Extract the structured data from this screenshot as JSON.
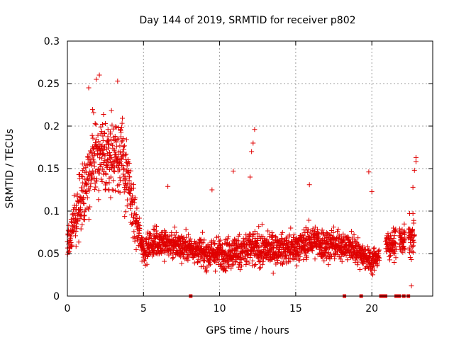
{
  "chart_data": {
    "type": "scatter",
    "title": "Day 144 of 2019, SRMTID for receiver p802",
    "xlabel": "GPS time / hours",
    "ylabel": "SRMTID / TECUs",
    "xlim": [
      0,
      24
    ],
    "ylim": [
      0,
      0.3
    ],
    "x_ticks": [
      0,
      5,
      10,
      15,
      20
    ],
    "x_tick_labels": [
      "0",
      "5",
      "10",
      "15",
      "20"
    ],
    "y_ticks": [
      0,
      0.05,
      0.1,
      0.15,
      0.2,
      0.25,
      0.3
    ],
    "y_tick_labels": [
      "0",
      "0.05",
      "0.1",
      "0.15",
      "0.2",
      "0.25",
      "0.3"
    ],
    "grid": true,
    "marker": "+",
    "color": "#e00000",
    "series": [
      {
        "name": "SRMTID",
        "envelope": [
          {
            "x": 0.0,
            "y_mean": 0.055,
            "y_spread": 0.025
          },
          {
            "x": 0.5,
            "y_mean": 0.09,
            "y_spread": 0.035
          },
          {
            "x": 1.0,
            "y_mean": 0.12,
            "y_spread": 0.05
          },
          {
            "x": 1.5,
            "y_mean": 0.15,
            "y_spread": 0.06
          },
          {
            "x": 2.0,
            "y_mean": 0.16,
            "y_spread": 0.065
          },
          {
            "x": 2.5,
            "y_mean": 0.165,
            "y_spread": 0.06
          },
          {
            "x": 3.0,
            "y_mean": 0.165,
            "y_spread": 0.055
          },
          {
            "x": 3.5,
            "y_mean": 0.17,
            "y_spread": 0.055
          },
          {
            "x": 4.0,
            "y_mean": 0.13,
            "y_spread": 0.06
          },
          {
            "x": 4.5,
            "y_mean": 0.085,
            "y_spread": 0.035
          },
          {
            "x": 5.0,
            "y_mean": 0.055,
            "y_spread": 0.02
          },
          {
            "x": 6.0,
            "y_mean": 0.065,
            "y_spread": 0.025
          },
          {
            "x": 7.0,
            "y_mean": 0.06,
            "y_spread": 0.022
          },
          {
            "x": 8.0,
            "y_mean": 0.058,
            "y_spread": 0.02
          },
          {
            "x": 9.0,
            "y_mean": 0.05,
            "y_spread": 0.022
          },
          {
            "x": 10.0,
            "y_mean": 0.05,
            "y_spread": 0.025
          },
          {
            "x": 11.0,
            "y_mean": 0.052,
            "y_spread": 0.025
          },
          {
            "x": 12.0,
            "y_mean": 0.055,
            "y_spread": 0.03
          },
          {
            "x": 13.0,
            "y_mean": 0.055,
            "y_spread": 0.025
          },
          {
            "x": 14.0,
            "y_mean": 0.055,
            "y_spread": 0.022
          },
          {
            "x": 15.0,
            "y_mean": 0.057,
            "y_spread": 0.022
          },
          {
            "x": 16.0,
            "y_mean": 0.065,
            "y_spread": 0.025
          },
          {
            "x": 17.0,
            "y_mean": 0.06,
            "y_spread": 0.025
          },
          {
            "x": 18.0,
            "y_mean": 0.06,
            "y_spread": 0.022
          },
          {
            "x": 19.0,
            "y_mean": 0.055,
            "y_spread": 0.02
          },
          {
            "x": 20.0,
            "y_mean": 0.04,
            "y_spread": 0.018
          },
          {
            "x": 21.0,
            "y_mean": 0.06,
            "y_spread": 0.02
          },
          {
            "x": 22.0,
            "y_mean": 0.065,
            "y_spread": 0.02
          },
          {
            "x": 22.8,
            "y_mean": 0.07,
            "y_spread": 0.035
          }
        ],
        "data_gaps_hours": [
          [
            20.5,
            20.9
          ],
          [
            21.6,
            21.8
          ],
          [
            22.2,
            22.4
          ]
        ],
        "outliers": [
          {
            "x": 2.1,
            "y": 0.26
          },
          {
            "x": 1.9,
            "y": 0.255
          },
          {
            "x": 3.3,
            "y": 0.253
          },
          {
            "x": 1.4,
            "y": 0.245
          },
          {
            "x": 12.3,
            "y": 0.196
          },
          {
            "x": 12.2,
            "y": 0.18
          },
          {
            "x": 12.1,
            "y": 0.17
          },
          {
            "x": 10.9,
            "y": 0.147
          },
          {
            "x": 19.8,
            "y": 0.146
          },
          {
            "x": 12.0,
            "y": 0.14
          },
          {
            "x": 15.9,
            "y": 0.131
          },
          {
            "x": 22.9,
            "y": 0.163
          },
          {
            "x": 22.9,
            "y": 0.158
          },
          {
            "x": 22.8,
            "y": 0.148
          },
          {
            "x": 22.7,
            "y": 0.128
          },
          {
            "x": 9.5,
            "y": 0.125
          },
          {
            "x": 20.0,
            "y": 0.123
          },
          {
            "x": 6.6,
            "y": 0.129
          },
          {
            "x": 22.6,
            "y": 0.012
          }
        ],
        "zero_markers_x": [
          8.1,
          18.2,
          19.3,
          20.6,
          20.8,
          20.9,
          21.6,
          21.8,
          22.1,
          22.4
        ]
      }
    ]
  }
}
